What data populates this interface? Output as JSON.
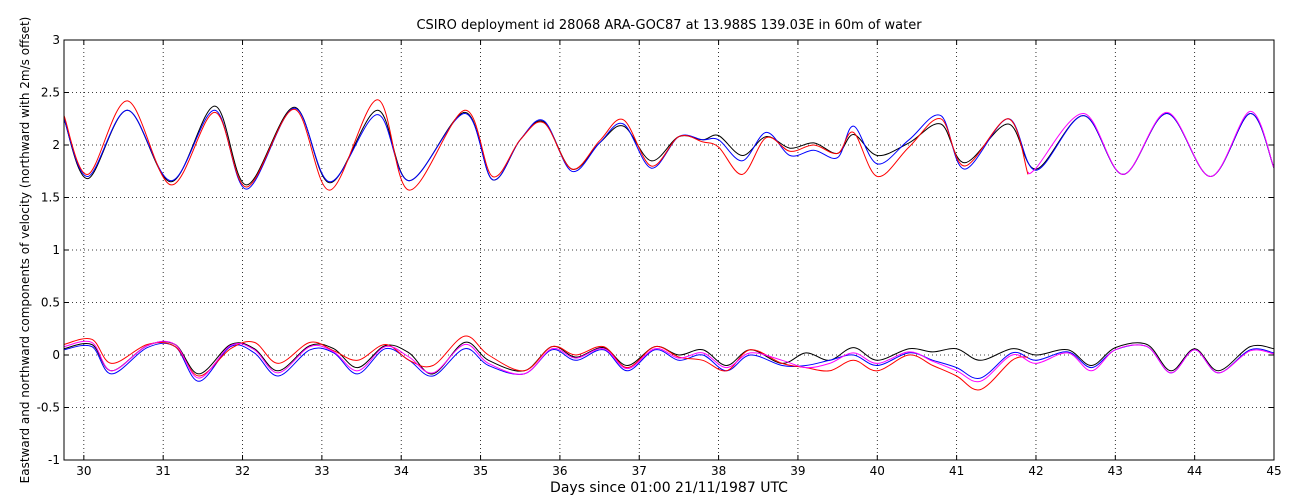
{
  "chart_data": {
    "type": "line",
    "title": "CSIRO deployment id 28068 ARA-GOC87 at 13.988S 139.03E in 60m of water",
    "xlabel": "Days since 01:00 21/11/1987 UTC",
    "ylabel": "Eastward  and northward components of velocity (northward with 2m/s offset)",
    "xlim": [
      29.75,
      45
    ],
    "ylim": [
      -1,
      3
    ],
    "xticks": [
      30,
      31,
      32,
      33,
      34,
      35,
      36,
      37,
      38,
      39,
      40,
      41,
      42,
      43,
      44,
      45
    ],
    "yticks": [
      -1,
      -0.5,
      0,
      0.5,
      1,
      1.5,
      2,
      2.5,
      3
    ],
    "ytick_labels": [
      "-1",
      "-0.5",
      "0",
      "0.5",
      "1",
      "1.5",
      "2",
      "2.5",
      "3"
    ],
    "grid": true,
    "colors": {
      "black": "#000000",
      "blue": "#0000ff",
      "red": "#ff0000",
      "magenta": "#ff00ff"
    },
    "series": [
      {
        "name": "northward + 2 (black)",
        "color": "#000000",
        "x": [
          29.75,
          30.05,
          30.55,
          31.1,
          31.65,
          32.05,
          32.65,
          33.1,
          33.7,
          34.1,
          34.8,
          35.15,
          35.5,
          35.8,
          36.15,
          36.5,
          36.8,
          37.15,
          37.5,
          37.8,
          38.0,
          38.3,
          38.6,
          38.9,
          39.2,
          39.5,
          39.7,
          40.0,
          40.4,
          40.8,
          41.1,
          41.65,
          42.0,
          42.6,
          43.1,
          43.65,
          44.2,
          44.7,
          45.0
        ],
        "y": [
          2.25,
          1.68,
          2.33,
          1.65,
          2.37,
          1.62,
          2.36,
          1.64,
          2.33,
          1.66,
          2.31,
          1.67,
          2.05,
          2.22,
          1.77,
          2.02,
          2.18,
          1.85,
          2.08,
          2.05,
          2.09,
          1.9,
          2.08,
          1.97,
          2.02,
          1.92,
          2.1,
          1.9,
          2.02,
          2.2,
          1.83,
          2.2,
          1.77,
          2.28,
          1.72,
          2.3,
          1.7,
          2.3,
          1.78
        ]
      },
      {
        "name": "northward + 2 (blue)",
        "color": "#0000ff",
        "x": [
          29.75,
          30.05,
          30.55,
          31.1,
          31.65,
          32.05,
          32.65,
          33.1,
          33.7,
          34.1,
          34.8,
          35.15,
          35.5,
          35.8,
          36.15,
          36.5,
          36.8,
          37.15,
          37.5,
          37.8,
          38.0,
          38.3,
          38.6,
          38.9,
          39.2,
          39.5,
          39.7,
          40.0,
          40.4,
          40.8,
          41.1,
          41.65,
          42.0,
          42.6,
          43.1,
          43.65,
          44.2,
          44.7,
          45.0
        ],
        "y": [
          2.25,
          1.7,
          2.33,
          1.66,
          2.33,
          1.58,
          2.35,
          1.65,
          2.29,
          1.66,
          2.3,
          1.67,
          2.05,
          2.23,
          1.75,
          2.02,
          2.2,
          1.78,
          2.08,
          2.05,
          2.05,
          1.85,
          2.12,
          1.9,
          1.95,
          1.88,
          2.18,
          1.82,
          2.05,
          2.28,
          1.77,
          2.25,
          1.76,
          2.28,
          1.72,
          2.3,
          1.7,
          2.3,
          1.78
        ]
      },
      {
        "name": "northward + 2 (red)",
        "color": "#ff0000",
        "x": [
          29.75,
          30.05,
          30.55,
          31.1,
          31.65,
          32.05,
          32.65,
          33.1,
          33.7,
          34.1,
          34.8,
          35.15,
          35.5,
          35.8,
          36.15,
          36.5,
          36.8,
          37.15,
          37.5,
          37.8,
          38.0,
          38.3,
          38.6,
          38.9,
          39.2,
          39.5,
          39.7,
          40.0,
          40.4,
          40.8,
          41.1,
          41.65,
          41.9
        ],
        "y": [
          2.28,
          1.72,
          2.42,
          1.62,
          2.31,
          1.6,
          2.34,
          1.57,
          2.43,
          1.57,
          2.33,
          1.7,
          2.05,
          2.21,
          1.77,
          2.04,
          2.24,
          1.8,
          2.08,
          2.03,
          1.98,
          1.72,
          2.07,
          1.94,
          2.0,
          1.92,
          2.12,
          1.7,
          1.98,
          2.25,
          1.8,
          2.25,
          1.72
        ]
      },
      {
        "name": "northward + 2 (magenta)",
        "color": "#ff00ff",
        "x": [
          41.9,
          42.0,
          42.6,
          43.1,
          43.65,
          44.2,
          44.7,
          45.0
        ],
        "y": [
          1.74,
          1.78,
          2.3,
          1.72,
          2.31,
          1.7,
          2.32,
          1.78
        ]
      },
      {
        "name": "eastward (black)",
        "color": "#000000",
        "x": [
          29.75,
          30.1,
          30.35,
          30.8,
          31.15,
          31.45,
          31.85,
          32.15,
          32.45,
          32.85,
          33.15,
          33.45,
          33.8,
          34.1,
          34.4,
          34.8,
          35.1,
          35.55,
          35.9,
          36.2,
          36.55,
          36.85,
          37.2,
          37.5,
          37.8,
          38.1,
          38.4,
          38.8,
          39.1,
          39.4,
          39.7,
          40.0,
          40.4,
          40.7,
          41.0,
          41.3,
          41.7,
          42.0,
          42.4,
          42.7,
          43.0,
          43.4,
          43.7,
          44.0,
          44.3,
          44.7,
          45.0
        ],
        "y": [
          0.06,
          0.1,
          -0.15,
          0.09,
          0.1,
          -0.18,
          0.1,
          0.06,
          -0.15,
          0.09,
          0.06,
          -0.12,
          0.09,
          0.02,
          -0.18,
          0.12,
          -0.05,
          -0.15,
          0.08,
          -0.02,
          0.07,
          -0.1,
          0.08,
          0.0,
          0.05,
          -0.1,
          0.05,
          -0.08,
          0.02,
          -0.05,
          0.07,
          -0.05,
          0.06,
          0.03,
          0.06,
          -0.05,
          0.06,
          0.0,
          0.05,
          -0.1,
          0.07,
          0.1,
          -0.15,
          0.06,
          -0.15,
          0.08,
          0.06
        ]
      },
      {
        "name": "eastward (blue)",
        "color": "#0000ff",
        "x": [
          29.75,
          30.1,
          30.35,
          30.8,
          31.15,
          31.45,
          31.85,
          32.15,
          32.45,
          32.85,
          33.15,
          33.45,
          33.8,
          34.1,
          34.4,
          34.8,
          35.1,
          35.55,
          35.9,
          36.2,
          36.55,
          36.85,
          37.2,
          37.5,
          37.8,
          38.1,
          38.4,
          38.8,
          39.1,
          39.4,
          39.7,
          40.0,
          40.4,
          40.7,
          41.0,
          41.3,
          41.7,
          42.0,
          42.4,
          42.7,
          43.0,
          43.4,
          43.7,
          44.0,
          44.3,
          44.7,
          45.0
        ],
        "y": [
          0.05,
          0.08,
          -0.18,
          0.07,
          0.08,
          -0.25,
          0.08,
          0.02,
          -0.2,
          0.05,
          0.02,
          -0.18,
          0.06,
          -0.05,
          -0.2,
          0.06,
          -0.1,
          -0.18,
          0.05,
          -0.05,
          0.05,
          -0.15,
          0.05,
          -0.05,
          0.0,
          -0.15,
          0.0,
          -0.1,
          -0.1,
          -0.05,
          0.0,
          -0.1,
          0.02,
          -0.05,
          -0.12,
          -0.22,
          0.02,
          -0.05,
          0.03,
          -0.12,
          0.05,
          0.08,
          -0.17,
          0.05,
          -0.17,
          0.05,
          0.02
        ]
      },
      {
        "name": "eastward (red)",
        "color": "#ff0000",
        "x": [
          29.75,
          30.1,
          30.35,
          30.8,
          31.15,
          31.45,
          31.85,
          32.15,
          32.45,
          32.85,
          33.15,
          33.45,
          33.8,
          34.1,
          34.4,
          34.8,
          35.1,
          35.55,
          35.9,
          36.2,
          36.55,
          36.85,
          37.2,
          37.5,
          37.8,
          38.1,
          38.4,
          38.8,
          39.1,
          39.4,
          39.7,
          40.0,
          40.4,
          40.7,
          41.0,
          41.3,
          41.7,
          41.9
        ],
        "y": [
          0.1,
          0.15,
          -0.08,
          0.1,
          0.08,
          -0.2,
          0.06,
          0.12,
          -0.08,
          0.12,
          0.04,
          -0.05,
          0.1,
          -0.05,
          -0.1,
          0.18,
          0.0,
          -0.15,
          0.08,
          0.0,
          0.08,
          -0.12,
          0.08,
          -0.02,
          -0.05,
          -0.15,
          0.05,
          -0.08,
          -0.12,
          -0.15,
          -0.05,
          -0.15,
          0.0,
          -0.1,
          -0.2,
          -0.33,
          -0.05,
          -0.02
        ]
      },
      {
        "name": "eastward (magenta)",
        "color": "#ff00ff",
        "x": [
          29.75,
          30.1,
          30.35,
          30.8,
          31.15,
          31.45,
          31.85,
          32.15,
          32.45,
          32.85,
          33.15,
          33.45,
          33.8,
          34.1,
          34.4,
          34.8,
          35.1,
          35.55,
          35.9,
          36.2,
          36.55,
          36.85,
          37.2,
          37.5,
          37.8,
          38.1,
          38.4,
          38.8,
          39.1,
          39.4,
          39.7,
          40.0,
          40.4,
          40.7,
          41.0,
          41.3,
          41.7,
          42.0,
          42.4,
          42.7,
          43.0,
          43.4,
          43.7,
          44.0,
          44.3,
          44.7,
          45.0
        ],
        "y": [
          0.08,
          0.12,
          -0.15,
          0.09,
          0.1,
          -0.22,
          0.09,
          0.05,
          -0.17,
          0.08,
          0.03,
          -0.15,
          0.08,
          -0.02,
          -0.17,
          0.1,
          -0.08,
          -0.18,
          0.06,
          -0.03,
          0.06,
          -0.13,
          0.06,
          -0.03,
          0.02,
          -0.12,
          0.02,
          -0.05,
          -0.12,
          -0.08,
          0.02,
          -0.08,
          0.03,
          -0.06,
          -0.15,
          -0.25,
          0.0,
          -0.08,
          0.02,
          -0.15,
          0.05,
          0.08,
          -0.17,
          0.05,
          -0.17,
          0.04,
          0.01
        ]
      }
    ]
  }
}
